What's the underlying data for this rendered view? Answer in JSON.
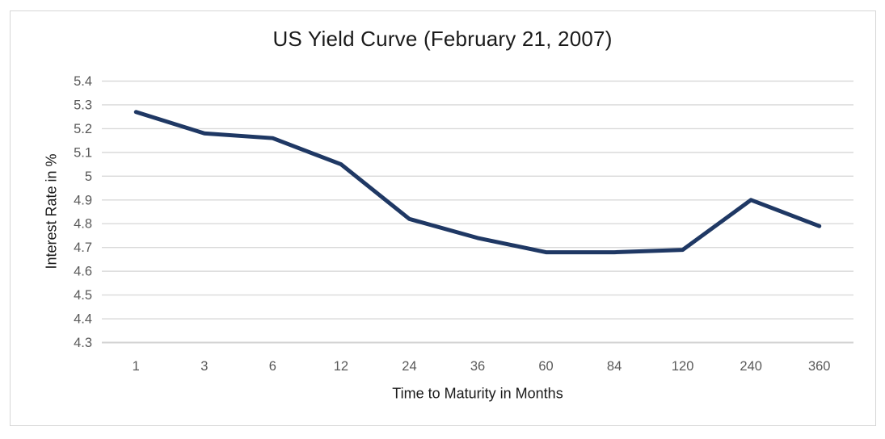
{
  "chart_data": {
    "type": "line",
    "title": "US Yield Curve (February 21, 2007)",
    "xlabel": "Time to Maturity in Months",
    "ylabel": "Interest Rate in %",
    "categories": [
      "1",
      "3",
      "6",
      "12",
      "24",
      "36",
      "60",
      "84",
      "120",
      "240",
      "360"
    ],
    "series": [
      {
        "name": "US Yield Curve",
        "values": [
          5.27,
          5.18,
          5.16,
          5.05,
          4.82,
          4.74,
          4.68,
          4.68,
          4.69,
          4.9,
          4.79
        ]
      }
    ],
    "ylim": [
      4.3,
      5.4
    ],
    "y_ticks": [
      {
        "label": "5.4",
        "value": 5.4
      },
      {
        "label": "5.3",
        "value": 5.3
      },
      {
        "label": "5.2",
        "value": 5.2
      },
      {
        "label": "5.1",
        "value": 5.1
      },
      {
        "label": "5",
        "value": 5.0
      },
      {
        "label": "4.9",
        "value": 4.9
      },
      {
        "label": "4.8",
        "value": 4.8
      },
      {
        "label": "4.7",
        "value": 4.7
      },
      {
        "label": "4.6",
        "value": 4.6
      },
      {
        "label": "4.5",
        "value": 4.5
      },
      {
        "label": "4.4",
        "value": 4.4
      },
      {
        "label": "4.3",
        "value": 4.3
      }
    ],
    "grid": true,
    "legend": "none",
    "colors": {
      "line": "#1f3864",
      "gridline": "#d9d9d9",
      "axis_line": "#d2d2d2",
      "tick_label": "#595959",
      "axis_title": "#1a1a1a",
      "title": "#1a1a1a",
      "border": "#d6d6d6",
      "background": "#ffffff"
    }
  }
}
